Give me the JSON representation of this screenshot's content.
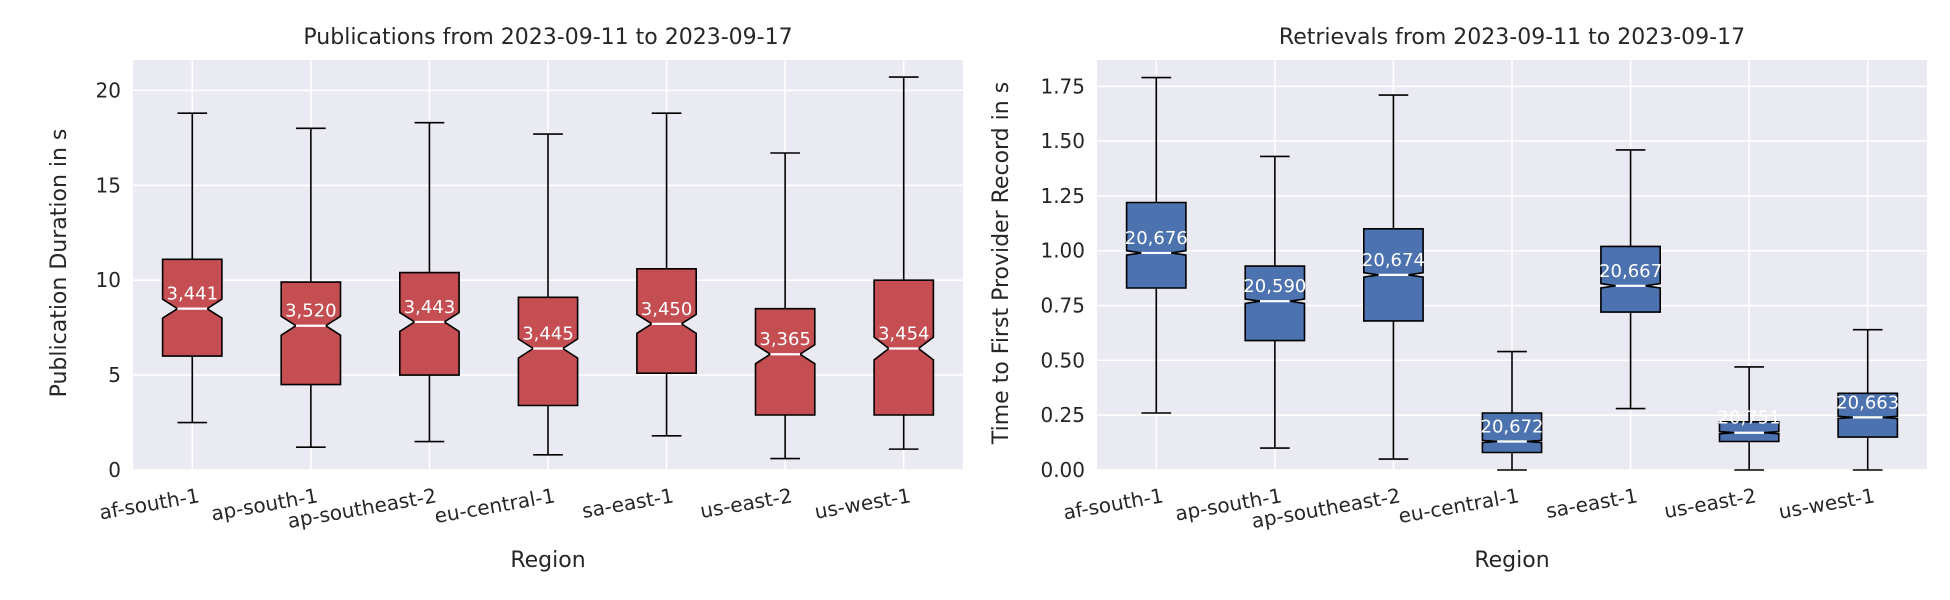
{
  "chart_data": [
    {
      "type": "box",
      "title": "Publications from 2023-09-11 to 2023-09-17",
      "xlabel": "Region",
      "ylabel": "Publication Duration in s",
      "ylim": [
        0,
        21.6
      ],
      "yticks": [
        0,
        5,
        10,
        15,
        20
      ],
      "ytick_labels": [
        "0",
        "5",
        "10",
        "15",
        "20"
      ],
      "grid": true,
      "notched": true,
      "box_color": "#c44e52",
      "categories": [
        "af-south-1",
        "ap-south-1",
        "ap-southeast-2",
        "eu-central-1",
        "sa-east-1",
        "us-east-2",
        "us-west-1"
      ],
      "boxes": [
        {
          "category": "af-south-1",
          "whisker_low": 2.5,
          "q1": 6.0,
          "median": 8.5,
          "q3": 11.1,
          "whisker_high": 18.8,
          "notch": [
            8.0,
            9.0
          ],
          "count": "3,441"
        },
        {
          "category": "ap-south-1",
          "whisker_low": 1.2,
          "q1": 4.5,
          "median": 7.6,
          "q3": 9.9,
          "whisker_high": 18.0,
          "notch": [
            7.1,
            8.1
          ],
          "count": "3,520"
        },
        {
          "category": "ap-southeast-2",
          "whisker_low": 1.5,
          "q1": 5.0,
          "median": 7.8,
          "q3": 10.4,
          "whisker_high": 18.3,
          "notch": [
            7.3,
            8.3
          ],
          "count": "3,443"
        },
        {
          "category": "eu-central-1",
          "whisker_low": 0.8,
          "q1": 3.4,
          "median": 6.4,
          "q3": 9.1,
          "whisker_high": 17.7,
          "notch": [
            5.9,
            6.9
          ],
          "count": "3,445"
        },
        {
          "category": "sa-east-1",
          "whisker_low": 1.8,
          "q1": 5.1,
          "median": 7.7,
          "q3": 10.6,
          "whisker_high": 18.8,
          "notch": [
            7.2,
            8.2
          ],
          "count": "3,450"
        },
        {
          "category": "us-east-2",
          "whisker_low": 0.6,
          "q1": 2.9,
          "median": 6.1,
          "q3": 8.5,
          "whisker_high": 16.7,
          "notch": [
            5.6,
            6.6
          ],
          "count": "3,365"
        },
        {
          "category": "us-west-1",
          "whisker_low": 1.1,
          "q1": 2.9,
          "median": 6.4,
          "q3": 10.0,
          "whisker_high": 20.7,
          "notch": [
            5.8,
            7.0
          ],
          "count": "3,454"
        }
      ]
    },
    {
      "type": "box",
      "title": "Retrievals from 2023-09-11 to 2023-09-17",
      "xlabel": "Region",
      "ylabel": "Time to First Provider Record in s",
      "ylim": [
        0,
        1.87
      ],
      "yticks": [
        0,
        0.25,
        0.5,
        0.75,
        1.0,
        1.25,
        1.5,
        1.75
      ],
      "ytick_labels": [
        "0.00",
        "0.25",
        "0.50",
        "0.75",
        "1.00",
        "1.25",
        "1.50",
        "1.75"
      ],
      "grid": true,
      "notched": true,
      "box_color": "#4c72b0",
      "categories": [
        "af-south-1",
        "ap-south-1",
        "ap-southeast-2",
        "eu-central-1",
        "sa-east-1",
        "us-east-2",
        "us-west-1"
      ],
      "boxes": [
        {
          "category": "af-south-1",
          "whisker_low": 0.26,
          "q1": 0.83,
          "median": 0.99,
          "q3": 1.22,
          "whisker_high": 1.79,
          "notch": [
            0.98,
            1.0
          ],
          "count": "20,676"
        },
        {
          "category": "ap-south-1",
          "whisker_low": 0.1,
          "q1": 0.59,
          "median": 0.77,
          "q3": 0.93,
          "whisker_high": 1.43,
          "notch": [
            0.76,
            0.78
          ],
          "count": "20,590"
        },
        {
          "category": "ap-southeast-2",
          "whisker_low": 0.05,
          "q1": 0.68,
          "median": 0.89,
          "q3": 1.1,
          "whisker_high": 1.71,
          "notch": [
            0.88,
            0.9
          ],
          "count": "20,674"
        },
        {
          "category": "eu-central-1",
          "whisker_low": 0.0,
          "q1": 0.08,
          "median": 0.13,
          "q3": 0.26,
          "whisker_high": 0.54,
          "notch": [
            0.125,
            0.135
          ],
          "count": "20,672"
        },
        {
          "category": "sa-east-1",
          "whisker_low": 0.28,
          "q1": 0.72,
          "median": 0.84,
          "q3": 1.02,
          "whisker_high": 1.46,
          "notch": [
            0.83,
            0.85
          ],
          "count": "20,667"
        },
        {
          "category": "us-east-2",
          "whisker_low": 0.0,
          "q1": 0.13,
          "median": 0.17,
          "q3": 0.22,
          "whisker_high": 0.47,
          "notch": [
            0.165,
            0.175
          ],
          "count": "20,751"
        },
        {
          "category": "us-west-1",
          "whisker_low": 0.0,
          "q1": 0.15,
          "median": 0.24,
          "q3": 0.35,
          "whisker_high": 0.64,
          "notch": [
            0.235,
            0.245
          ],
          "count": "20,663"
        }
      ]
    }
  ]
}
